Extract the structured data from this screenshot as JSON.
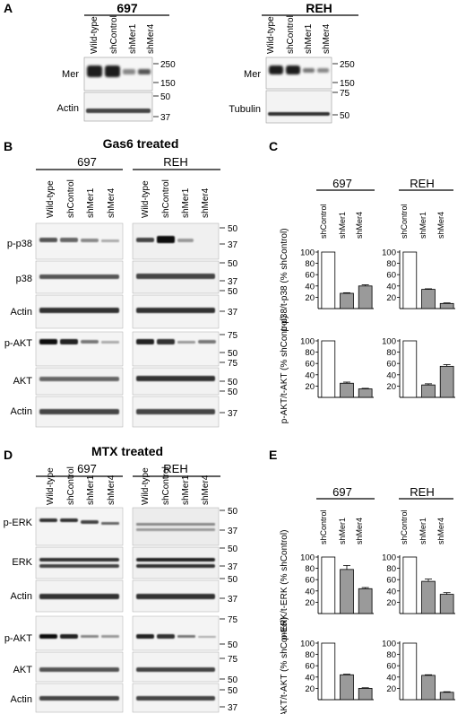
{
  "panels": {
    "A": {
      "letter": "A",
      "left_title": "697",
      "right_title": "REH",
      "lanes": [
        "Wild-type",
        "shControl",
        "shMer1",
        "shMer4"
      ],
      "left_labels": [
        "Mer",
        "Actin"
      ],
      "right_labels": [
        "Mer",
        "Tubulin"
      ],
      "left_markers": [
        "250",
        "150",
        "50",
        "37"
      ],
      "right_markers": [
        "250",
        "150",
        "75",
        "50"
      ]
    },
    "B": {
      "letter": "B",
      "title": "Gas6 treated",
      "group_left": "697",
      "group_right": "REH",
      "lanes": [
        "Wild-type",
        "shControl",
        "shMer1",
        "shMer4"
      ],
      "blot_labels": [
        "p-p38",
        "p38",
        "Actin",
        "p-AKT",
        "AKT",
        "Actin"
      ],
      "markers": [
        "50",
        "37",
        "50",
        "37",
        "50",
        "37",
        "75",
        "50",
        "75",
        "50",
        "50",
        "37"
      ]
    },
    "C": {
      "letter": "C",
      "group_left": "697",
      "group_right": "REH",
      "lanes": [
        "shControl",
        "shMer1",
        "shMer4"
      ],
      "ylabel_top": "p-p38/t-p38 (% shControl)",
      "ylabel_bottom": "p-AKT/t-AKT (% shControl)",
      "yticks": [
        "100",
        "80",
        "60",
        "40",
        "20"
      ]
    },
    "D": {
      "letter": "D",
      "title": "MTX treated",
      "group_left": "697",
      "group_right": "REH",
      "lanes": [
        "Wild-type",
        "shControl",
        "shMer1",
        "shMer4"
      ],
      "blot_labels": [
        "p-ERK",
        "ERK",
        "Actin",
        "p-AKT",
        "AKT",
        "Actin"
      ],
      "markers": [
        "50",
        "37",
        "50",
        "37",
        "50",
        "37",
        "75",
        "50",
        "75",
        "50",
        "50",
        "37"
      ]
    },
    "E": {
      "letter": "E",
      "group_left": "697",
      "group_right": "REH",
      "lanes": [
        "shControl",
        "shMer1",
        "shMer4"
      ],
      "ylabel_top": "p-ERK/t-ERK (% shControl)",
      "ylabel_bottom": "p-AKT/t-AKT (% shControl)",
      "yticks": [
        "100",
        "80",
        "60",
        "40",
        "20"
      ]
    }
  },
  "chart_data": [
    {
      "type": "bar",
      "panel": "C",
      "group": "697",
      "categories": [
        "shControl",
        "shMer1",
        "shMer4"
      ],
      "values": [
        100,
        27,
        40
      ],
      "errors": [
        0,
        1,
        2
      ],
      "ylim": [
        0,
        100
      ],
      "ylabel": "p-p38/t-p38 (% shControl)",
      "colors": [
        "#ffffff",
        "#9a9a9a",
        "#9a9a9a"
      ]
    },
    {
      "type": "bar",
      "panel": "C",
      "group": "REH",
      "categories": [
        "shControl",
        "shMer1",
        "shMer4"
      ],
      "values": [
        100,
        34,
        9
      ],
      "errors": [
        0,
        1,
        1
      ],
      "ylim": [
        0,
        100
      ],
      "ylabel": "p-p38/t-p38 (% shControl)",
      "colors": [
        "#ffffff",
        "#9a9a9a",
        "#9a9a9a"
      ]
    },
    {
      "type": "bar",
      "panel": "C",
      "group": "697",
      "categories": [
        "shControl",
        "shMer1",
        "shMer4"
      ],
      "values": [
        100,
        25,
        15
      ],
      "errors": [
        0,
        2,
        1
      ],
      "ylim": [
        0,
        100
      ],
      "ylabel": "p-AKT/t-AKT (% shControl)",
      "colors": [
        "#ffffff",
        "#9a9a9a",
        "#9a9a9a"
      ]
    },
    {
      "type": "bar",
      "panel": "C",
      "group": "REH",
      "categories": [
        "shControl",
        "shMer1",
        "shMer4"
      ],
      "values": [
        100,
        22,
        55
      ],
      "errors": [
        0,
        2,
        3
      ],
      "ylim": [
        0,
        100
      ],
      "ylabel": "p-AKT/t-AKT (% shControl)",
      "colors": [
        "#ffffff",
        "#9a9a9a",
        "#9a9a9a"
      ]
    },
    {
      "type": "bar",
      "panel": "E",
      "group": "697",
      "categories": [
        "shControl",
        "shMer1",
        "shMer4"
      ],
      "values": [
        100,
        78,
        44
      ],
      "errors": [
        0,
        7,
        2
      ],
      "ylim": [
        0,
        100
      ],
      "ylabel": "p-ERK/t-ERK (% shControl)",
      "colors": [
        "#ffffff",
        "#9a9a9a",
        "#9a9a9a"
      ]
    },
    {
      "type": "bar",
      "panel": "E",
      "group": "REH",
      "categories": [
        "shControl",
        "shMer1",
        "shMer4"
      ],
      "values": [
        100,
        57,
        34
      ],
      "errors": [
        0,
        4,
        3
      ],
      "ylim": [
        0,
        100
      ],
      "ylabel": "p-ERK/t-ERK (% shControl)",
      "colors": [
        "#ffffff",
        "#9a9a9a",
        "#9a9a9a"
      ]
    },
    {
      "type": "bar",
      "panel": "E",
      "group": "697",
      "categories": [
        "shControl",
        "shMer1",
        "shMer4"
      ],
      "values": [
        100,
        44,
        20
      ],
      "errors": [
        0,
        1,
        1
      ],
      "ylim": [
        0,
        100
      ],
      "ylabel": "p-AKT/t-AKT (% shControl)",
      "colors": [
        "#ffffff",
        "#9a9a9a",
        "#9a9a9a"
      ]
    },
    {
      "type": "bar",
      "panel": "E",
      "group": "REH",
      "categories": [
        "shControl",
        "shMer1",
        "shMer4"
      ],
      "values": [
        100,
        43,
        13
      ],
      "errors": [
        0,
        1,
        1
      ],
      "ylim": [
        0,
        100
      ],
      "ylabel": "p-AKT/t-AKT (% shControl)",
      "colors": [
        "#ffffff",
        "#9a9a9a",
        "#9a9a9a"
      ]
    }
  ]
}
